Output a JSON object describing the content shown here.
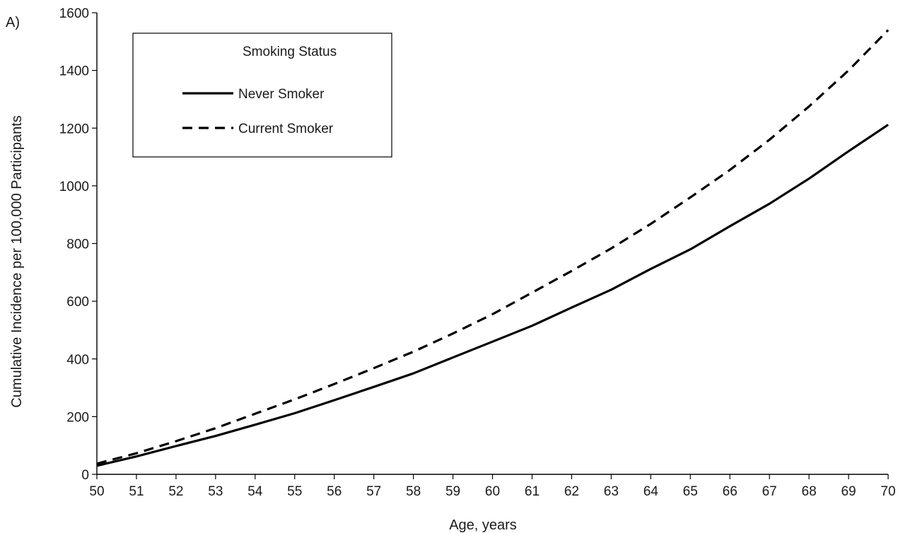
{
  "panel_label": "A)",
  "chart_data": {
    "type": "line",
    "xlabel": "Age, years",
    "ylabel": "Cumulative Incidence per 100,000 Participants",
    "xlim": [
      50,
      70
    ],
    "ylim": [
      0,
      1600
    ],
    "x_ticks": [
      50,
      51,
      52,
      53,
      54,
      55,
      56,
      57,
      58,
      59,
      60,
      61,
      62,
      63,
      64,
      65,
      66,
      67,
      68,
      69,
      70
    ],
    "y_ticks": [
      0,
      200,
      400,
      600,
      800,
      1000,
      1200,
      1400,
      1600
    ],
    "grid": false,
    "legend": {
      "title": "Smoking Status",
      "placement": "top-left"
    },
    "x": [
      50,
      51,
      52,
      53,
      54,
      55,
      56,
      57,
      58,
      59,
      60,
      61,
      62,
      63,
      64,
      65,
      66,
      67,
      68,
      69,
      70
    ],
    "series": [
      {
        "name": "Never Smoker",
        "style": "solid",
        "color": "#000000",
        "values": [
          30,
          62,
          98,
          133,
          172,
          212,
          257,
          303,
          350,
          405,
          460,
          515,
          578,
          640,
          712,
          780,
          860,
          938,
          1025,
          1120,
          1212
        ]
      },
      {
        "name": "Current Smoker",
        "style": "dashed",
        "color": "#000000",
        "values": [
          37,
          73,
          115,
          160,
          210,
          260,
          313,
          368,
          425,
          488,
          555,
          630,
          705,
          783,
          868,
          960,
          1055,
          1160,
          1275,
          1400,
          1540
        ]
      }
    ]
  }
}
